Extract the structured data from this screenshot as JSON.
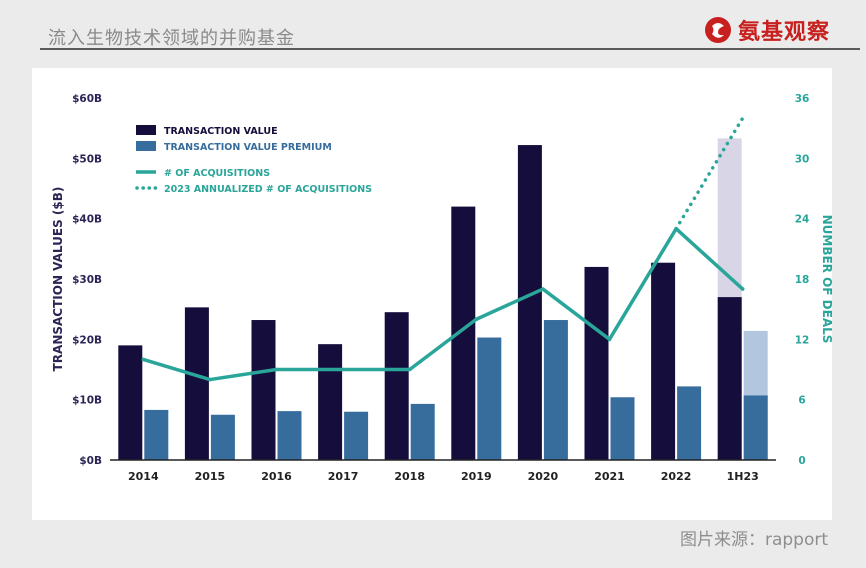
{
  "header": {
    "title": "流入生物技术领域的并购基金",
    "brand": "氨基观察"
  },
  "source": "图片来源：rapport",
  "colors": {
    "transaction_value": "#150e3c",
    "transaction_value_premium": "#376d9d",
    "acquisitions": "#2aa59a",
    "annualized_value": "#d7d5e6",
    "annualized_premium": "#b2c6df",
    "left_axis_text": "#2a2555",
    "right_axis_text": "#2aa59a"
  },
  "chart_data": {
    "type": "bar",
    "categories": [
      "2014",
      "2015",
      "2016",
      "2017",
      "2018",
      "2019",
      "2020",
      "2021",
      "2022",
      "1H23"
    ],
    "series": [
      {
        "name": "TRANSACTION VALUE",
        "values": [
          19,
          25.3,
          23.2,
          19.2,
          24.5,
          42,
          52.2,
          32,
          32.7,
          27
        ]
      },
      {
        "name": "TRANSACTION VALUE PREMIUM",
        "values": [
          8.3,
          7.5,
          8.1,
          8,
          9.3,
          20.3,
          23.2,
          10.4,
          12.2,
          10.7
        ]
      },
      {
        "name": "# OF ACQUISITIONS",
        "axis": "right",
        "values": [
          10,
          8,
          9,
          9,
          9,
          14,
          17,
          12,
          23,
          17
        ]
      },
      {
        "name": "2023 ANNUALIZED # OF ACQUISITIONS",
        "axis": "right",
        "x": [
          "2022",
          "1H23"
        ],
        "values": [
          23,
          34
        ]
      }
    ],
    "annualized_bars": {
      "category": "1H23",
      "transaction_value": 53.3,
      "transaction_value_premium": 21.4
    },
    "ylabel": "TRANSACTION VALUES ($B)",
    "ylabel_right": "NUMBER OF DEALS",
    "ylim": [
      0,
      60
    ],
    "ylim_right": [
      0,
      36
    ],
    "yticks": [
      "$0B",
      "$10B",
      "$20B",
      "$30B",
      "$40B",
      "$50B",
      "$60B"
    ],
    "yticks_right": [
      "0",
      "6",
      "12",
      "18",
      "24",
      "30",
      "36"
    ],
    "legend": [
      "TRANSACTION VALUE",
      "TRANSACTION VALUE PREMIUM",
      "# OF ACQUISITIONS",
      "2023 ANNUALIZED # OF ACQUISITIONS"
    ],
    "legend_position": "top-left",
    "grid": false
  }
}
